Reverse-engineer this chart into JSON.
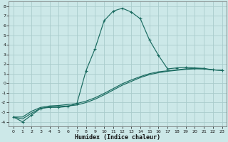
{
  "xlabel": "Humidex (Indice chaleur)",
  "background_color": "#cce8e8",
  "grid_color": "#aacccc",
  "line_color": "#1a6b60",
  "xlim": [
    -0.5,
    23.5
  ],
  "ylim": [
    -4.5,
    8.5
  ],
  "xticks": [
    0,
    1,
    2,
    3,
    4,
    5,
    6,
    7,
    8,
    9,
    10,
    11,
    12,
    13,
    14,
    15,
    16,
    17,
    18,
    19,
    20,
    21,
    22,
    23
  ],
  "yticks": [
    -4,
    -3,
    -2,
    -1,
    0,
    1,
    2,
    3,
    4,
    5,
    6,
    7,
    8
  ],
  "line1_x": [
    0,
    1,
    2,
    3,
    4,
    5,
    6,
    7,
    8,
    9,
    10,
    11,
    12,
    13,
    14,
    15,
    16,
    17,
    18,
    19,
    20,
    21,
    22,
    23
  ],
  "line1_y": [
    -3.5,
    -4.0,
    -3.3,
    -2.6,
    -2.5,
    -2.5,
    -2.4,
    -2.1,
    1.3,
    3.6,
    6.5,
    7.5,
    7.8,
    7.4,
    6.7,
    4.5,
    2.9,
    1.5,
    1.6,
    1.65,
    1.6,
    1.55,
    1.4,
    1.35
  ],
  "line2_x": [
    0,
    1,
    2,
    3,
    4,
    5,
    6,
    7,
    8,
    9,
    10,
    11,
    12,
    13,
    14,
    15,
    16,
    17,
    18,
    19,
    20,
    21,
    22,
    23
  ],
  "line2_y": [
    -3.5,
    -3.7,
    -3.1,
    -2.6,
    -2.45,
    -2.4,
    -2.35,
    -2.25,
    -2.0,
    -1.65,
    -1.2,
    -0.7,
    -0.2,
    0.2,
    0.6,
    0.9,
    1.1,
    1.25,
    1.35,
    1.45,
    1.5,
    1.5,
    1.4,
    1.35
  ],
  "line3_x": [
    0,
    1,
    2,
    3,
    4,
    5,
    6,
    7,
    8,
    9,
    10,
    11,
    12,
    13,
    14,
    15,
    16,
    17,
    18,
    19,
    20,
    21,
    22,
    23
  ],
  "line3_y": [
    -3.5,
    -3.5,
    -2.9,
    -2.5,
    -2.35,
    -2.3,
    -2.2,
    -2.1,
    -1.85,
    -1.5,
    -1.05,
    -0.55,
    -0.05,
    0.35,
    0.7,
    1.0,
    1.2,
    1.3,
    1.4,
    1.5,
    1.55,
    1.5,
    1.4,
    1.35
  ]
}
